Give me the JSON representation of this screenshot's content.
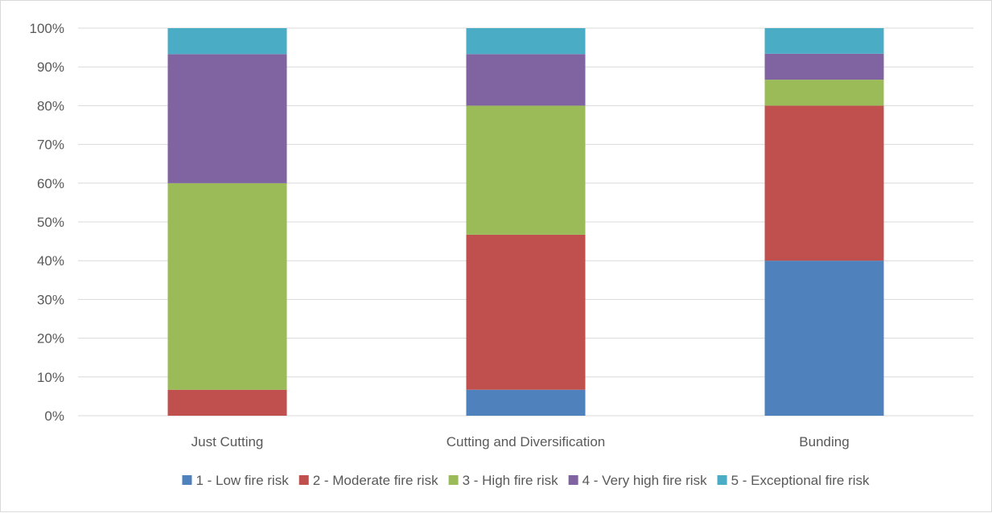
{
  "chart_data": {
    "type": "bar",
    "stacked": true,
    "percent_stacked": true,
    "title": "",
    "xlabel": "",
    "ylabel": "",
    "ylim": [
      0,
      100
    ],
    "y_ticks": [
      "0%",
      "10%",
      "20%",
      "30%",
      "40%",
      "50%",
      "60%",
      "70%",
      "80%",
      "90%",
      "100%"
    ],
    "y_tick_values": [
      0,
      10,
      20,
      30,
      40,
      50,
      60,
      70,
      80,
      90,
      100
    ],
    "grid": true,
    "legend_position": "bottom",
    "categories": [
      "Just Cutting",
      "Cutting and Diversification",
      "Bunding"
    ],
    "series": [
      {
        "name": "1 - Low fire risk",
        "color": "#4f81bd",
        "values": [
          0,
          6.7,
          40
        ]
      },
      {
        "name": "2 - Moderate fire risk",
        "color": "#c0504d",
        "values": [
          6.7,
          40,
          40
        ]
      },
      {
        "name": "3 - High fire risk",
        "color": "#9bbb59",
        "values": [
          53.3,
          33.3,
          6.7
        ]
      },
      {
        "name": "4 - Very high fire risk",
        "color": "#8064a2",
        "values": [
          33.3,
          13.3,
          6.7
        ]
      },
      {
        "name": "5 - Exceptional fire risk",
        "color": "#4bacc6",
        "values": [
          6.7,
          6.7,
          6.6
        ]
      }
    ]
  }
}
